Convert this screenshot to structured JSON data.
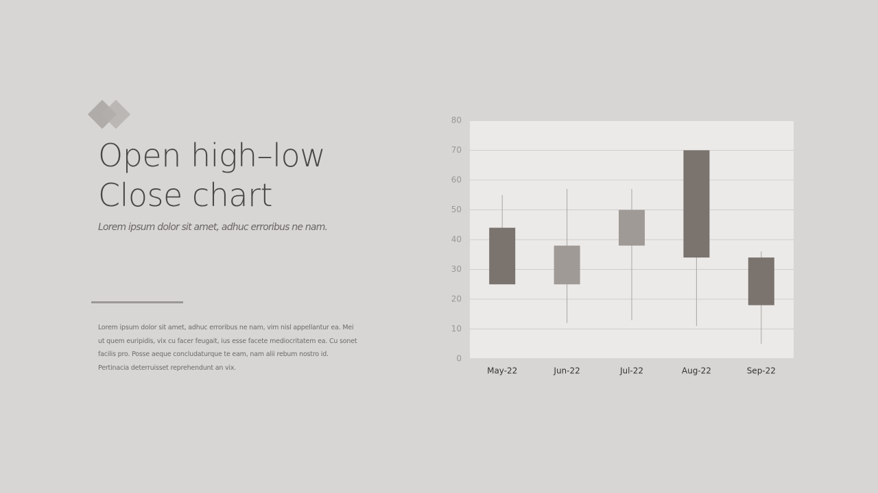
{
  "slide": {
    "title": [
      "Open high–low",
      "Close chart"
    ],
    "subtitle": "Lorem ipsum dolor sit amet, adhuc erroribus ne nam.",
    "body": "Lorem ipsum dolor sit amet, adhuc erroribus ne nam, vim nisl appellantur ea. Mei ut quem euripidis, vix cu facer feugait, ius esse facete mediocritatem ea. Cu sonet facilis pro. Posse aeque concludaturque te eam, nam alii rebum nostro id. Pertinacia deterruisset reprehendunt an vix."
  },
  "chart_data": {
    "type": "candlestick",
    "categories": [
      "May-22",
      "Jun-22",
      "Jul-22",
      "Aug-22",
      "Sep-22"
    ],
    "open": [
      44,
      25,
      38,
      70,
      34
    ],
    "high": [
      55,
      57,
      57,
      70,
      36
    ],
    "low": [
      25,
      12,
      13,
      11,
      5
    ],
    "close": [
      25,
      38,
      50,
      34,
      18
    ],
    "up_color": "#a09a96",
    "down_color": "#7a736e",
    "ylim": [
      0,
      80
    ],
    "yticks": [
      0,
      10,
      20,
      30,
      40,
      50,
      60,
      70,
      80
    ],
    "grid": true
  }
}
